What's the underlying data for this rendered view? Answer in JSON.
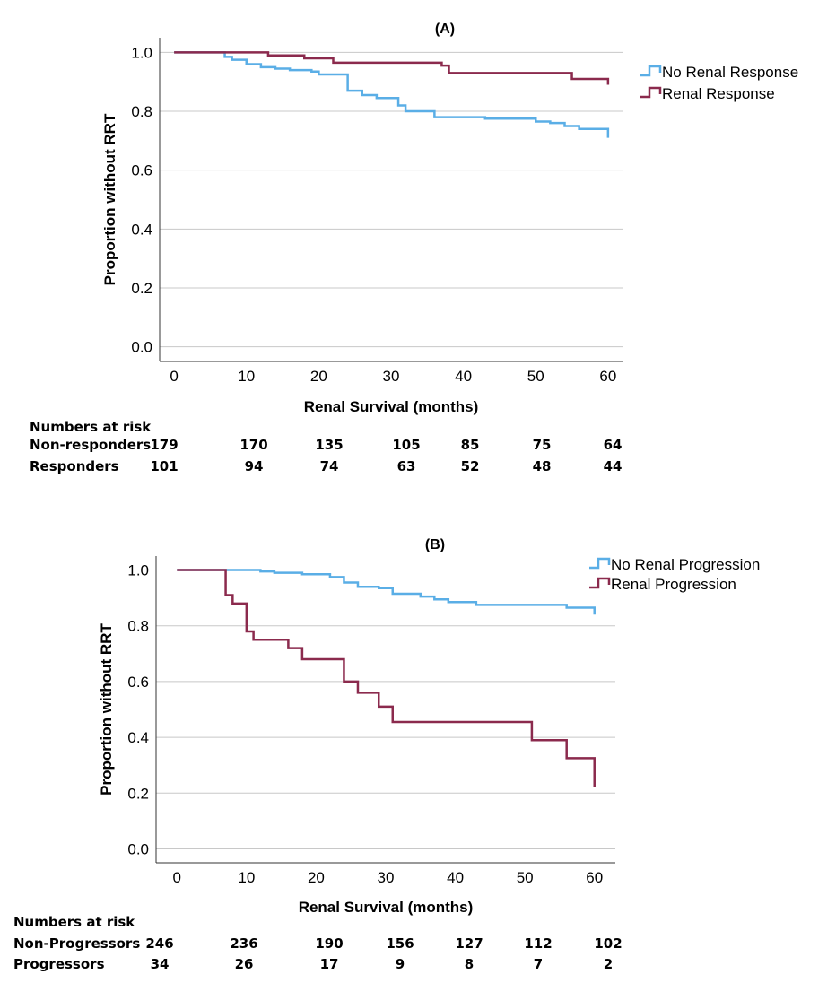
{
  "chart_data": [
    {
      "type": "line",
      "subtype": "kaplan-meier",
      "title": "(A)",
      "xlabel": "Renal Survival (months)",
      "ylabel": "Proportion without RRT",
      "xlim": [
        -2,
        62
      ],
      "ylim": [
        -0.05,
        1.05
      ],
      "xticks": [
        "0",
        "10",
        "20",
        "30",
        "40",
        "50",
        "60"
      ],
      "yticks": [
        "0.0",
        "0.2",
        "0.4",
        "0.6",
        "0.8",
        "1.0"
      ],
      "grid": "horizontal",
      "legend_position": "right",
      "series": [
        {
          "name": "No Renal Response",
          "color": "#5aaee6",
          "x": [
            0,
            7,
            8,
            10,
            12,
            14,
            16,
            19,
            20,
            24,
            26,
            28,
            31,
            32,
            36,
            43,
            50,
            52,
            54,
            56,
            60
          ],
          "y": [
            1.0,
            0.985,
            0.975,
            0.96,
            0.95,
            0.945,
            0.94,
            0.935,
            0.925,
            0.87,
            0.855,
            0.845,
            0.82,
            0.8,
            0.78,
            0.775,
            0.765,
            0.76,
            0.75,
            0.74,
            0.71
          ]
        },
        {
          "name": "Renal Response",
          "color": "#8b2a4d",
          "x": [
            0,
            13,
            18,
            22,
            37,
            38,
            55,
            60
          ],
          "y": [
            1.0,
            0.99,
            0.98,
            0.965,
            0.955,
            0.93,
            0.91,
            0.89
          ]
        }
      ]
    },
    {
      "type": "line",
      "subtype": "kaplan-meier",
      "title": "(B)",
      "xlabel": "Renal Survival (months)",
      "ylabel": "Proportion without RRT",
      "xlim": [
        -3,
        63
      ],
      "ylim": [
        -0.05,
        1.05
      ],
      "xticks": [
        "0",
        "10",
        "20",
        "30",
        "40",
        "50",
        "60"
      ],
      "yticks": [
        "0.0",
        "0.2",
        "0.4",
        "0.6",
        "0.8",
        "1.0"
      ],
      "grid": "horizontal",
      "legend_position": "top-right",
      "series": [
        {
          "name": "No Renal Progression",
          "color": "#5aaee6",
          "x": [
            0,
            12,
            14,
            18,
            22,
            24,
            26,
            29,
            31,
            35,
            37,
            39,
            43,
            56,
            60
          ],
          "y": [
            1.0,
            0.995,
            0.99,
            0.985,
            0.975,
            0.955,
            0.94,
            0.935,
            0.915,
            0.905,
            0.895,
            0.885,
            0.875,
            0.865,
            0.84
          ]
        },
        {
          "name": "Renal Progression",
          "color": "#8b2a4d",
          "x": [
            0,
            7,
            8,
            10,
            11,
            16,
            18,
            24,
            26,
            29,
            31,
            51,
            56,
            60
          ],
          "y": [
            1.0,
            0.91,
            0.88,
            0.78,
            0.75,
            0.72,
            0.68,
            0.6,
            0.56,
            0.51,
            0.455,
            0.39,
            0.325,
            0.22
          ]
        }
      ]
    }
  ],
  "risk_tables": [
    {
      "header": "Numbers at risk",
      "rows": [
        {
          "label": "Non-responders",
          "values": [
            "179",
            "170",
            "135",
            "105",
            "85",
            "75",
            "64"
          ]
        },
        {
          "label": "Responders",
          "values": [
            "101",
            "94",
            "74",
            "63",
            "52",
            "48",
            "44"
          ]
        }
      ]
    },
    {
      "header": "Numbers at risk",
      "rows": [
        {
          "label": "Non-Progressors",
          "values": [
            "246",
            "236",
            "190",
            "156",
            "127",
            "112",
            "102"
          ]
        },
        {
          "label": "Progressors",
          "values": [
            "34",
            "26",
            "17",
            "9",
            "8",
            "7",
            "2"
          ]
        }
      ]
    }
  ]
}
